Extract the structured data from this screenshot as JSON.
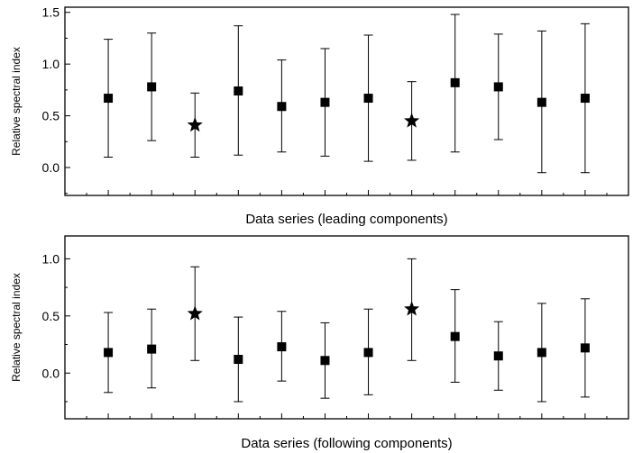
{
  "chart_data": [
    {
      "type": "scatter",
      "error_bars": true,
      "title": "",
      "xlabel": "Data series (leading components)",
      "ylabel": "Relative spectral index",
      "ylim": [
        -0.27,
        1.55
      ],
      "y_ticks": [
        0.0,
        0.5,
        1.0,
        1.5
      ],
      "y_tick_labels": [
        "0.0",
        "0.5",
        "1.0",
        "1.5"
      ],
      "x": [
        1,
        2,
        3,
        4,
        5,
        6,
        7,
        8,
        9,
        10,
        11,
        12
      ],
      "xlim": [
        0,
        13
      ],
      "grid": false,
      "series": [
        {
          "marker": "square",
          "x": [
            1,
            2,
            4,
            5,
            6,
            7,
            9,
            10,
            11,
            12
          ],
          "values": [
            0.67,
            0.78,
            0.74,
            0.59,
            0.63,
            0.67,
            0.82,
            0.78,
            0.63,
            0.67
          ],
          "lower": [
            0.1,
            0.26,
            0.12,
            0.15,
            0.11,
            0.06,
            0.15,
            0.27,
            -0.05,
            -0.05
          ],
          "upper": [
            1.24,
            1.3,
            1.37,
            1.04,
            1.15,
            1.28,
            1.48,
            1.29,
            1.32,
            1.39
          ]
        },
        {
          "marker": "star",
          "x": [
            3,
            8
          ],
          "values": [
            0.41,
            0.45
          ],
          "lower": [
            0.1,
            0.07
          ],
          "upper": [
            0.72,
            0.83
          ]
        }
      ]
    },
    {
      "type": "scatter",
      "error_bars": true,
      "title": "",
      "xlabel": "Data series (following components)",
      "ylabel": "Relative spectral index",
      "ylim": [
        -0.4,
        1.2
      ],
      "y_ticks": [
        0.0,
        0.5,
        1.0
      ],
      "y_tick_labels": [
        "0.0",
        "0.5",
        "1.0"
      ],
      "x": [
        1,
        2,
        3,
        4,
        5,
        6,
        7,
        8,
        9,
        10,
        11,
        12
      ],
      "xlim": [
        0,
        13
      ],
      "grid": false,
      "series": [
        {
          "marker": "square",
          "x": [
            1,
            2,
            4,
            5,
            6,
            7,
            9,
            10,
            11,
            12
          ],
          "values": [
            0.18,
            0.21,
            0.12,
            0.23,
            0.11,
            0.18,
            0.32,
            0.15,
            0.18,
            0.22
          ],
          "lower": [
            -0.17,
            -0.13,
            -0.25,
            -0.07,
            -0.22,
            -0.19,
            -0.08,
            -0.15,
            -0.25,
            -0.21
          ],
          "upper": [
            0.53,
            0.56,
            0.49,
            0.54,
            0.44,
            0.56,
            0.73,
            0.45,
            0.61,
            0.65
          ]
        },
        {
          "marker": "star",
          "x": [
            3,
            8
          ],
          "values": [
            0.52,
            0.56
          ],
          "lower": [
            0.11,
            0.11
          ],
          "upper": [
            0.93,
            1.0
          ]
        }
      ]
    }
  ]
}
